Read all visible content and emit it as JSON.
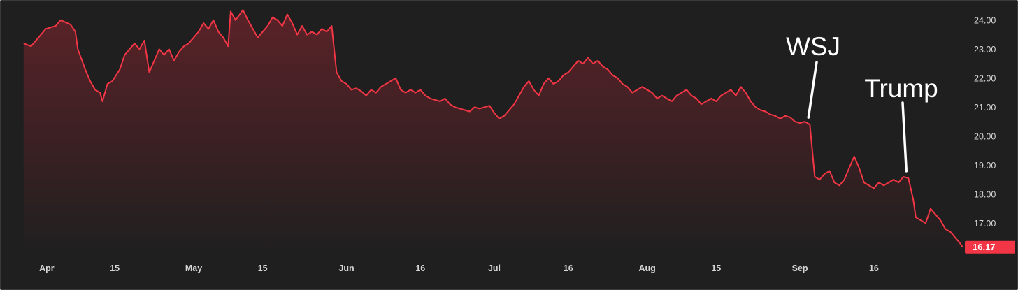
{
  "colors": {
    "background": "#1f1f1f",
    "line": "#f23645",
    "fill_top": "#5a2228",
    "fill_bottom": "#1f1f1f",
    "text": "#d6d6d6",
    "annotation": "#ffffff"
  },
  "chart_data": {
    "type": "area",
    "title": "",
    "xlabel": "",
    "ylabel": "",
    "ylim": [
      15.85,
      24.55
    ],
    "y_ticks": [
      "24.00",
      "23.00",
      "22.00",
      "21.00",
      "20.00",
      "19.00",
      "18.00",
      "17.00"
    ],
    "x_tick_labels": [
      {
        "label": "Apr",
        "x": 0.2
      },
      {
        "label": "15",
        "x": 14
      },
      {
        "label": "May",
        "x": 30
      },
      {
        "label": "15",
        "x": 44
      },
      {
        "label": "Jun",
        "x": 61
      },
      {
        "label": "16",
        "x": 76
      },
      {
        "label": "Jul",
        "x": 91
      },
      {
        "label": "16",
        "x": 106
      },
      {
        "label": "Aug",
        "x": 122
      },
      {
        "label": "15",
        "x": 136
      },
      {
        "label": "Sep",
        "x": 153
      },
      {
        "label": "16",
        "x": 168
      }
    ],
    "series": [
      {
        "values": [
          [
            -4.5,
            23.2
          ],
          [
            -3,
            23.1
          ],
          [
            -1,
            23.5
          ],
          [
            0,
            23.7
          ],
          [
            2,
            23.8
          ],
          [
            3,
            24.0
          ],
          [
            5,
            23.85
          ],
          [
            6,
            23.6
          ],
          [
            6.5,
            23.0
          ],
          [
            8,
            22.3
          ],
          [
            9,
            21.9
          ],
          [
            10,
            21.6
          ],
          [
            11,
            21.5
          ],
          [
            11.5,
            21.2
          ],
          [
            12.5,
            21.8
          ],
          [
            13.5,
            21.9
          ],
          [
            15,
            22.3
          ],
          [
            16,
            22.8
          ],
          [
            17,
            23.0
          ],
          [
            18,
            23.2
          ],
          [
            19,
            23.0
          ],
          [
            20,
            23.3
          ],
          [
            21,
            22.2
          ],
          [
            22,
            22.6
          ],
          [
            23,
            23.0
          ],
          [
            24,
            22.8
          ],
          [
            25,
            23.0
          ],
          [
            26,
            22.6
          ],
          [
            27,
            22.9
          ],
          [
            28,
            23.1
          ],
          [
            29,
            23.2
          ],
          [
            30,
            23.4
          ],
          [
            31,
            23.6
          ],
          [
            32,
            23.9
          ],
          [
            33,
            23.7
          ],
          [
            34,
            24.0
          ],
          [
            35,
            23.6
          ],
          [
            36,
            23.4
          ],
          [
            37,
            23.1
          ],
          [
            37.5,
            24.3
          ],
          [
            38.5,
            24.0
          ],
          [
            40,
            24.35
          ],
          [
            41,
            24.0
          ],
          [
            42,
            23.7
          ],
          [
            43,
            23.4
          ],
          [
            44,
            23.6
          ],
          [
            45,
            23.8
          ],
          [
            46,
            24.1
          ],
          [
            47,
            24.0
          ],
          [
            48,
            23.8
          ],
          [
            49,
            24.2
          ],
          [
            50,
            23.9
          ],
          [
            51,
            23.5
          ],
          [
            52,
            23.8
          ],
          [
            53,
            23.5
          ],
          [
            54,
            23.6
          ],
          [
            55,
            23.5
          ],
          [
            56,
            23.7
          ],
          [
            57,
            23.6
          ],
          [
            58,
            23.8
          ],
          [
            59,
            22.2
          ],
          [
            60,
            21.9
          ],
          [
            61,
            21.8
          ],
          [
            62,
            21.6
          ],
          [
            63,
            21.65
          ],
          [
            64,
            21.55
          ],
          [
            65,
            21.4
          ],
          [
            66,
            21.6
          ],
          [
            67,
            21.5
          ],
          [
            68,
            21.7
          ],
          [
            69,
            21.8
          ],
          [
            70,
            21.9
          ],
          [
            71,
            22.0
          ],
          [
            72,
            21.6
          ],
          [
            73,
            21.5
          ],
          [
            74,
            21.6
          ],
          [
            75,
            21.5
          ],
          [
            76,
            21.6
          ],
          [
            77,
            21.4
          ],
          [
            78,
            21.3
          ],
          [
            79,
            21.25
          ],
          [
            80,
            21.2
          ],
          [
            81,
            21.3
          ],
          [
            82,
            21.1
          ],
          [
            83,
            21.0
          ],
          [
            84,
            20.95
          ],
          [
            85,
            20.9
          ],
          [
            86,
            20.85
          ],
          [
            87,
            21.0
          ],
          [
            88,
            20.95
          ],
          [
            89,
            21.0
          ],
          [
            90,
            21.05
          ],
          [
            91,
            20.8
          ],
          [
            92,
            20.6
          ],
          [
            93,
            20.7
          ],
          [
            94,
            20.9
          ],
          [
            95,
            21.1
          ],
          [
            96,
            21.4
          ],
          [
            97,
            21.7
          ],
          [
            98,
            21.9
          ],
          [
            99,
            21.6
          ],
          [
            100,
            21.4
          ],
          [
            101,
            21.8
          ],
          [
            102,
            22.0
          ],
          [
            103,
            21.8
          ],
          [
            104,
            21.9
          ],
          [
            105,
            22.1
          ],
          [
            106,
            22.2
          ],
          [
            107,
            22.4
          ],
          [
            108,
            22.6
          ],
          [
            109,
            22.5
          ],
          [
            110,
            22.7
          ],
          [
            111,
            22.5
          ],
          [
            112,
            22.6
          ],
          [
            113,
            22.4
          ],
          [
            114,
            22.3
          ],
          [
            115,
            22.1
          ],
          [
            116,
            22.0
          ],
          [
            117,
            21.8
          ],
          [
            118,
            21.7
          ],
          [
            119,
            21.5
          ],
          [
            120,
            21.6
          ],
          [
            121,
            21.7
          ],
          [
            122,
            21.6
          ],
          [
            123,
            21.5
          ],
          [
            124,
            21.3
          ],
          [
            125,
            21.4
          ],
          [
            126,
            21.3
          ],
          [
            127,
            21.2
          ],
          [
            128,
            21.4
          ],
          [
            129,
            21.5
          ],
          [
            130,
            21.6
          ],
          [
            131,
            21.4
          ],
          [
            132,
            21.3
          ],
          [
            133,
            21.1
          ],
          [
            134,
            21.2
          ],
          [
            135,
            21.3
          ],
          [
            136,
            21.2
          ],
          [
            137,
            21.4
          ],
          [
            138,
            21.5
          ],
          [
            139,
            21.6
          ],
          [
            140,
            21.4
          ],
          [
            141,
            21.7
          ],
          [
            142,
            21.5
          ],
          [
            143,
            21.2
          ],
          [
            144,
            21.0
          ],
          [
            145,
            20.9
          ],
          [
            146,
            20.85
          ],
          [
            147,
            20.75
          ],
          [
            148,
            20.7
          ],
          [
            149,
            20.6
          ],
          [
            150,
            20.7
          ],
          [
            151,
            20.65
          ],
          [
            152,
            20.5
          ],
          [
            153,
            20.45
          ],
          [
            154,
            20.5
          ],
          [
            155,
            20.4
          ],
          [
            156,
            18.6
          ],
          [
            157,
            18.5
          ],
          [
            158,
            18.7
          ],
          [
            159,
            18.8
          ],
          [
            160,
            18.4
          ],
          [
            161,
            18.3
          ],
          [
            162,
            18.5
          ],
          [
            163,
            18.9
          ],
          [
            164,
            19.3
          ],
          [
            165,
            18.9
          ],
          [
            166,
            18.4
          ],
          [
            167,
            18.3
          ],
          [
            168,
            18.2
          ],
          [
            169,
            18.4
          ],
          [
            170,
            18.3
          ],
          [
            171,
            18.4
          ],
          [
            172,
            18.5
          ],
          [
            173,
            18.4
          ],
          [
            174,
            18.6
          ],
          [
            175,
            18.55
          ],
          [
            176,
            17.8
          ],
          [
            176.5,
            17.2
          ],
          [
            177.5,
            17.1
          ],
          [
            178.5,
            17.0
          ],
          [
            179.5,
            17.5
          ],
          [
            180.5,
            17.3
          ],
          [
            181.5,
            17.1
          ],
          [
            182.5,
            16.8
          ],
          [
            183.5,
            16.7
          ],
          [
            184.5,
            16.5
          ],
          [
            185.5,
            16.3
          ],
          [
            186,
            16.17
          ]
        ]
      }
    ],
    "last_value": "16.17",
    "annotations": [
      {
        "label": "WSJ",
        "x": 155,
        "y": 20.45
      },
      {
        "label": "Trump",
        "x": 175,
        "y": 18.6
      }
    ]
  }
}
